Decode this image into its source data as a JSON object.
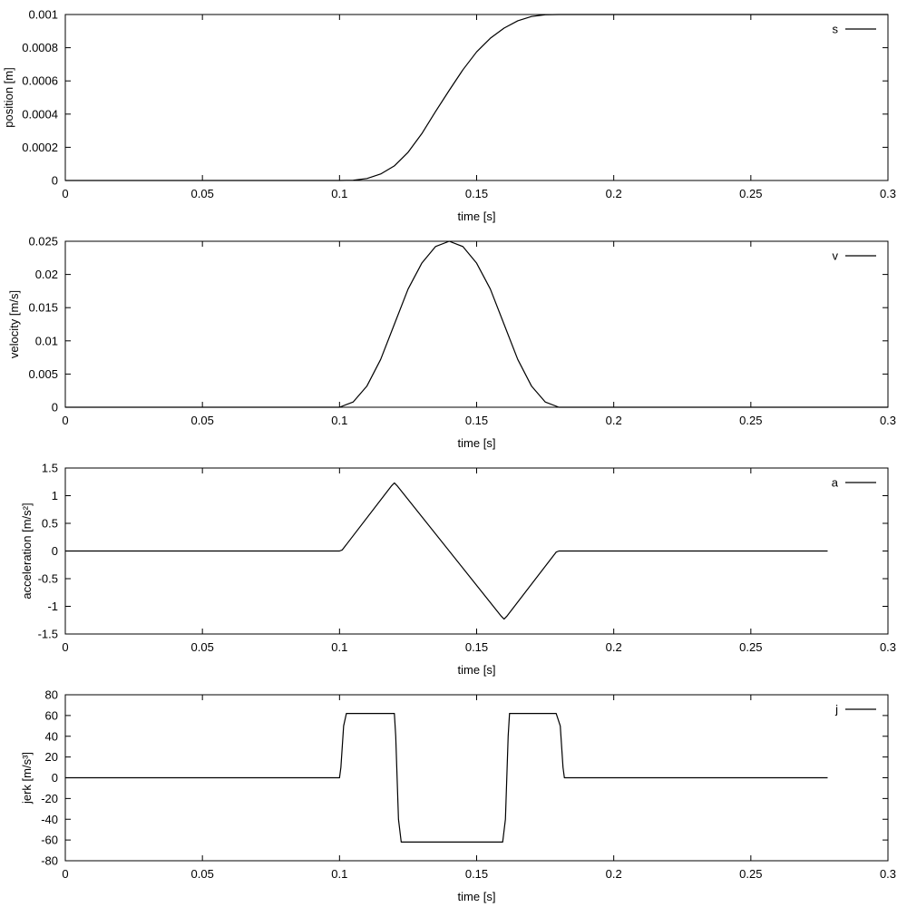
{
  "chart_data": [
    {
      "type": "line",
      "xlabel": "time [s]",
      "ylabel": "position [m]",
      "xlim": [
        0,
        0.3
      ],
      "ylim": [
        0,
        0.001
      ],
      "x_ticks": [
        "0",
        "0.05",
        "0.1",
        "0.15",
        "0.2",
        "0.25",
        "0.3"
      ],
      "y_ticks": [
        "0",
        "0.0002",
        "0.0004",
        "0.0006",
        "0.0008",
        "0.001"
      ],
      "legend_position": "top-right",
      "grid": false,
      "series": [
        {
          "name": "s",
          "x": [
            0,
            0.1,
            0.105,
            0.11,
            0.115,
            0.12,
            0.125,
            0.13,
            0.135,
            0.14,
            0.145,
            0.15,
            0.155,
            0.16,
            0.165,
            0.17,
            0.175,
            0.18,
            0.2,
            0.25,
            0.3
          ],
          "y": [
            0,
            0,
            1.5e-06,
            1.2e-05,
            3.9e-05,
            8.8e-05,
            0.00017,
            0.000282,
            0.000415,
            0.000543,
            0.000667,
            0.000775,
            0.000857,
            0.000918,
            0.000962,
            0.000988,
            0.0009985,
            0.001,
            0.001,
            0.001,
            0.001
          ]
        }
      ]
    },
    {
      "type": "line",
      "xlabel": "time [s]",
      "ylabel": "velocity [m/s]",
      "xlim": [
        0,
        0.3
      ],
      "ylim": [
        0,
        0.025
      ],
      "x_ticks": [
        "0",
        "0.05",
        "0.1",
        "0.15",
        "0.2",
        "0.25",
        "0.3"
      ],
      "y_ticks": [
        "0",
        "0.005",
        "0.01",
        "0.015",
        "0.02",
        "0.025"
      ],
      "legend_position": "top-right",
      "grid": false,
      "series": [
        {
          "name": "v",
          "x": [
            0,
            0.1,
            0.105,
            0.11,
            0.115,
            0.12,
            0.125,
            0.13,
            0.135,
            0.14,
            0.145,
            0.15,
            0.155,
            0.16,
            0.165,
            0.17,
            0.175,
            0.18,
            0.2,
            0.25,
            0.3
          ],
          "y": [
            0,
            0,
            0.0008,
            0.0032,
            0.0072,
            0.0125,
            0.0178,
            0.0217,
            0.0242,
            0.025,
            0.0242,
            0.0217,
            0.0178,
            0.0125,
            0.0072,
            0.0032,
            0.0008,
            0,
            0,
            0,
            0
          ]
        }
      ]
    },
    {
      "type": "line",
      "xlabel": "time [s]",
      "ylabel": "acceleration [m/s²]",
      "xlim": [
        0,
        0.3
      ],
      "ylim": [
        -1.5,
        1.5
      ],
      "x_ticks": [
        "0",
        "0.05",
        "0.1",
        "0.15",
        "0.2",
        "0.25",
        "0.3"
      ],
      "y_ticks": [
        "-1.5",
        "-1",
        "-0.5",
        "0",
        "0.5",
        "1",
        "1.5"
      ],
      "legend_position": "top-right",
      "grid": false,
      "series": [
        {
          "name": "a",
          "x": [
            0,
            0.1,
            0.101,
            0.119,
            0.12,
            0.121,
            0.159,
            0.16,
            0.161,
            0.179,
            0.18,
            0.278
          ],
          "y": [
            0,
            0,
            0.02,
            1.18,
            1.23,
            1.18,
            -1.18,
            -1.23,
            -1.18,
            -0.02,
            0,
            0
          ]
        }
      ]
    },
    {
      "type": "line",
      "xlabel": "time [s]",
      "ylabel": "jerk [m/s³]",
      "xlim": [
        0,
        0.3
      ],
      "ylim": [
        -80,
        80
      ],
      "x_ticks": [
        "0",
        "0.05",
        "0.1",
        "0.15",
        "0.2",
        "0.25",
        "0.3"
      ],
      "y_ticks": [
        "-80",
        "-60",
        "-40",
        "-20",
        "0",
        "20",
        "40",
        "60",
        "80"
      ],
      "legend_position": "top-right",
      "grid": false,
      "series": [
        {
          "name": "j",
          "x": [
            0,
            0.1,
            0.1005,
            0.1015,
            0.1025,
            0.12,
            0.1205,
            0.1215,
            0.1225,
            0.1595,
            0.1605,
            0.1615,
            0.162,
            0.179,
            0.1805,
            0.1815,
            0.182,
            0.278
          ],
          "y": [
            0,
            0,
            10,
            50,
            62,
            62,
            40,
            -40,
            -62,
            -62,
            -40,
            40,
            62,
            62,
            50,
            10,
            0,
            0
          ]
        }
      ]
    }
  ]
}
